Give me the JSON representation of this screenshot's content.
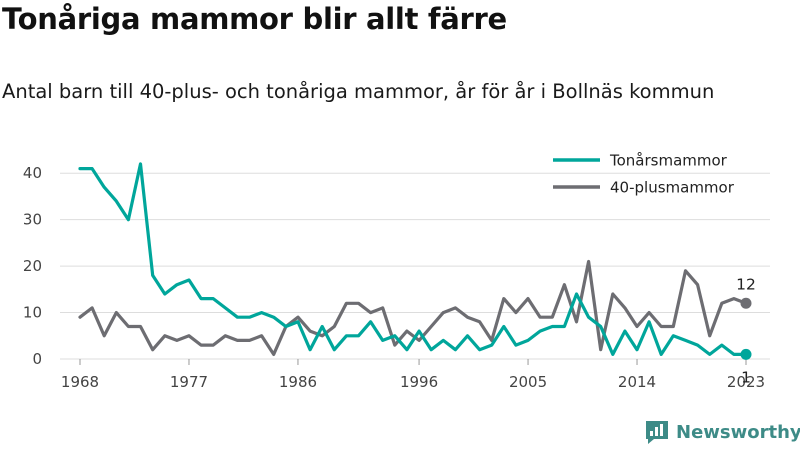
{
  "title": "Tonåriga mammor blir allt färre",
  "subtitle": "Antal barn till 40-plus- och tonåriga mammor, år för år i Bollnäs kommun",
  "brand": {
    "name": "Newsworthy",
    "icon": "newsworthy-logo-icon"
  },
  "colors": {
    "teen": "#00a69b",
    "forty": "#6d6d72",
    "grid": "#dddddd"
  },
  "chart_data": {
    "type": "line",
    "x": [
      1968,
      1969,
      1970,
      1971,
      1972,
      1973,
      1974,
      1975,
      1976,
      1977,
      1978,
      1979,
      1980,
      1981,
      1982,
      1983,
      1984,
      1985,
      1986,
      1987,
      1988,
      1989,
      1990,
      1991,
      1992,
      1993,
      1994,
      1995,
      1996,
      1997,
      1998,
      1999,
      2000,
      2001,
      2002,
      2003,
      2004,
      2005,
      2006,
      2007,
      2008,
      2009,
      2010,
      2011,
      2012,
      2013,
      2014,
      2015,
      2016,
      2017,
      2018,
      2019,
      2020,
      2021,
      2022,
      2023
    ],
    "series": [
      {
        "name": "Tonårsmammor",
        "values": [
          41,
          41,
          37,
          34,
          30,
          42,
          18,
          14,
          16,
          17,
          13,
          13,
          11,
          9,
          9,
          10,
          9,
          7,
          8,
          2,
          7,
          2,
          5,
          5,
          8,
          4,
          5,
          2,
          6,
          2,
          4,
          2,
          5,
          2,
          3,
          7,
          3,
          4,
          6,
          7,
          7,
          14,
          9,
          7,
          1,
          6,
          2,
          8,
          1,
          5,
          4,
          3,
          1,
          3,
          1,
          1
        ]
      },
      {
        "name": "40-plusmammor",
        "values": [
          9,
          11,
          5,
          10,
          7,
          7,
          2,
          5,
          4,
          5,
          3,
          3,
          5,
          4,
          4,
          5,
          1,
          7,
          9,
          6,
          5,
          7,
          12,
          12,
          10,
          11,
          3,
          6,
          4,
          7,
          10,
          11,
          9,
          8,
          4,
          13,
          10,
          13,
          9,
          9,
          16,
          8,
          21,
          2,
          14,
          11,
          7,
          10,
          7,
          7,
          19,
          16,
          5,
          12,
          13,
          12
        ]
      }
    ],
    "x_ticks": [
      1968,
      1977,
      1986,
      1996,
      2005,
      2014,
      2023
    ],
    "y_ticks": [
      0,
      10,
      20,
      30,
      40
    ],
    "xlim": [
      1968,
      2023
    ],
    "ylim": [
      0,
      45
    ],
    "legend_position": "top-right",
    "end_labels": {
      "Tonårsmammor": "1",
      "40-plusmammor": "12"
    },
    "grid": "horizontal"
  }
}
